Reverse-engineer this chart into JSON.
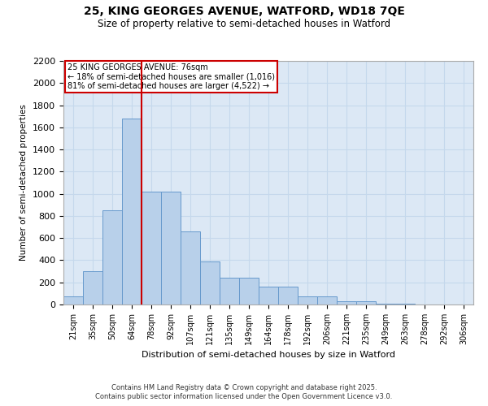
{
  "title_line1": "25, KING GEORGES AVENUE, WATFORD, WD18 7QE",
  "title_line2": "Size of property relative to semi-detached houses in Watford",
  "xlabel": "Distribution of semi-detached houses by size in Watford",
  "ylabel": "Number of semi-detached properties",
  "categories": [
    "21sqm",
    "35sqm",
    "50sqm",
    "64sqm",
    "78sqm",
    "92sqm",
    "107sqm",
    "121sqm",
    "135sqm",
    "149sqm",
    "164sqm",
    "178sqm",
    "192sqm",
    "206sqm",
    "221sqm",
    "235sqm",
    "249sqm",
    "263sqm",
    "278sqm",
    "292sqm",
    "306sqm"
  ],
  "values": [
    70,
    300,
    850,
    1680,
    1020,
    1020,
    660,
    390,
    240,
    240,
    160,
    160,
    70,
    70,
    30,
    30,
    10,
    10,
    3,
    0,
    3
  ],
  "bar_color": "#b8d0ea",
  "bar_edge_color": "#6699cc",
  "vline_color": "#cc0000",
  "vline_x_index": 4,
  "annotation_title": "25 KING GEORGES AVENUE: 76sqm",
  "annotation_line1": "← 18% of semi-detached houses are smaller (1,016)",
  "annotation_line2": "81% of semi-detached houses are larger (4,522) →",
  "annotation_box_facecolor": "#ffffff",
  "annotation_box_edgecolor": "#cc0000",
  "ylim": [
    0,
    2200
  ],
  "yticks": [
    0,
    200,
    400,
    600,
    800,
    1000,
    1200,
    1400,
    1600,
    1800,
    2000,
    2200
  ],
  "grid_color": "#c5d8ec",
  "bg_color": "#dce8f5",
  "footer_line1": "Contains HM Land Registry data © Crown copyright and database right 2025.",
  "footer_line2": "Contains public sector information licensed under the Open Government Licence v3.0."
}
